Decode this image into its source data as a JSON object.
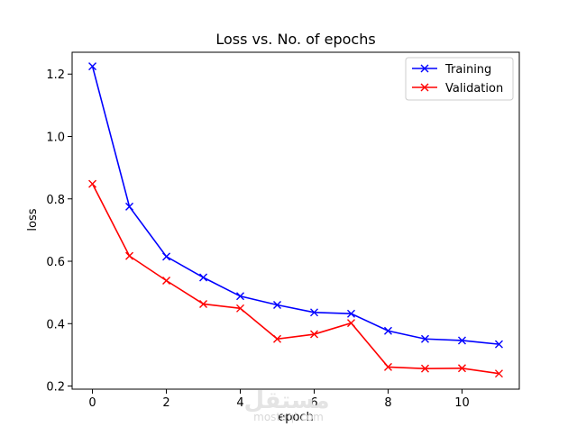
{
  "chart_data": {
    "type": "line",
    "title": "Loss vs. No. of epochs",
    "xlabel": "epoch",
    "ylabel": "loss",
    "x": [
      0,
      1,
      2,
      3,
      4,
      5,
      6,
      7,
      8,
      9,
      10,
      11
    ],
    "series": [
      {
        "name": "Training",
        "color": "#0000ff",
        "marker": "x",
        "values": [
          1.225,
          0.775,
          0.615,
          0.548,
          0.488,
          0.46,
          0.436,
          0.432,
          0.377,
          0.351,
          0.346,
          0.334
        ]
      },
      {
        "name": "Validation",
        "color": "#ff0000",
        "marker": "x",
        "values": [
          0.848,
          0.617,
          0.538,
          0.463,
          0.449,
          0.351,
          0.366,
          0.402,
          0.261,
          0.256,
          0.257,
          0.24
        ]
      }
    ],
    "xlim": [
      -0.55,
      11.55
    ],
    "ylim": [
      0.19,
      1.27
    ],
    "xticks": [
      0,
      2,
      4,
      6,
      8,
      10
    ],
    "xtick_labels": [
      "0",
      "2",
      "4",
      "6",
      "8",
      "10"
    ],
    "yticks": [
      0.2,
      0.4,
      0.6,
      0.8,
      1.0,
      1.2
    ],
    "ytick_labels": [
      "0.2",
      "0.4",
      "0.6",
      "0.8",
      "1.0",
      "1.2"
    ],
    "grid": false,
    "legend_position": "top-right"
  },
  "watermark": {
    "arabic": "مستقل",
    "latin": "mostaql.com"
  }
}
